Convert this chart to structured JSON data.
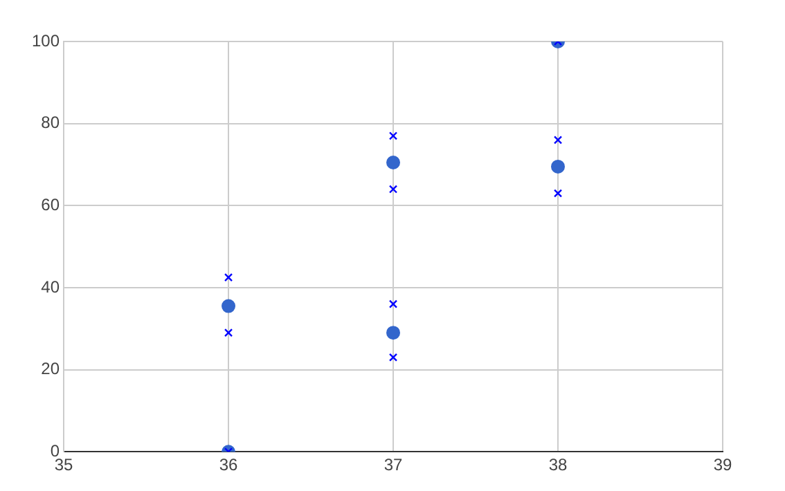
{
  "chart_data": {
    "type": "scatter",
    "xlim": [
      35,
      39
    ],
    "xticks": [
      35,
      36,
      37,
      38,
      39
    ],
    "ylim": [
      0,
      100
    ],
    "yticks": [
      0,
      20,
      40,
      60,
      80,
      100
    ],
    "grid": true,
    "legend": false,
    "series": [
      {
        "color": "#0000ff",
        "marker": "cross",
        "x": [
          36,
          36,
          36,
          37,
          37,
          37,
          37,
          38,
          38,
          38
        ],
        "values": [
          42.5,
          29,
          0,
          77,
          64,
          36,
          23,
          100,
          76,
          63
        ]
      },
      {
        "color": "#3366cc",
        "marker": "circle",
        "x": [
          36,
          36,
          37,
          37,
          38,
          38
        ],
        "values": [
          35.5,
          0,
          70.5,
          29,
          69.5,
          100
        ]
      }
    ]
  }
}
